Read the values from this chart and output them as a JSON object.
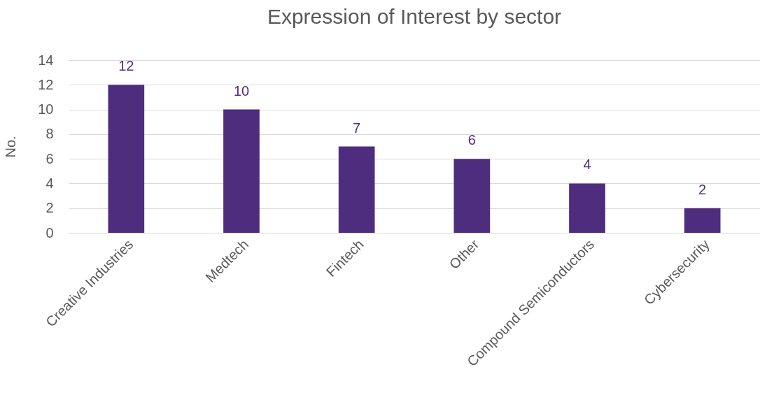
{
  "chart_data": {
    "type": "bar",
    "title": "Expression of Interest by sector",
    "ylabel": "No.",
    "categories": [
      "Creative Industries",
      "Medtech",
      "Fintech",
      "Other",
      "Compound Semiconductors",
      "Cybersecurity"
    ],
    "values": [
      12,
      10,
      7,
      6,
      4,
      2
    ],
    "color": "#4e2d7f",
    "ylim": [
      0,
      14
    ],
    "yticks": [
      0,
      2,
      4,
      6,
      8,
      10,
      12,
      14
    ],
    "grid": "y",
    "data_labels": true
  }
}
